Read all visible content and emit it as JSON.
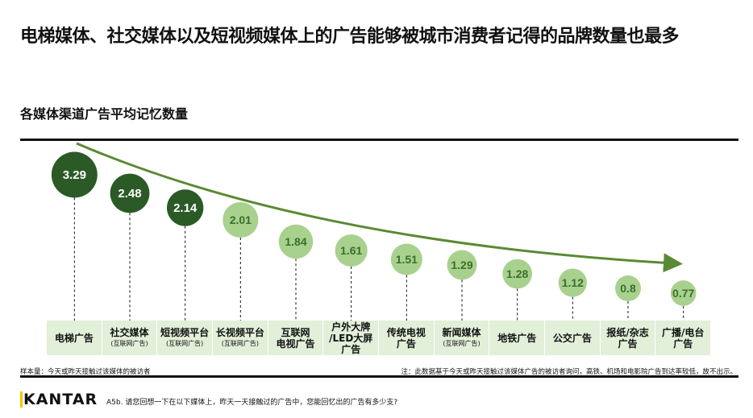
{
  "title": "电梯媒体、社交媒体以及短视频媒体上的广告能够被城市消费者记得的品牌数量也最多",
  "chart_data": {
    "type": "bar",
    "title": "各媒体渠道广告平均记忆数量",
    "categories": [
      {
        "label": "电梯广告",
        "sub": ""
      },
      {
        "label": "社交媒体",
        "sub": "(互联网广告)"
      },
      {
        "label": "短视频平台",
        "sub": "(互联网广告)"
      },
      {
        "label": "长视频平台",
        "sub": "(互联网广告)"
      },
      {
        "label": "互联网\n电视广告",
        "sub": ""
      },
      {
        "label": "户外大牌\n/LED大屏\n广告",
        "sub": ""
      },
      {
        "label": "传统电视\n广告",
        "sub": ""
      },
      {
        "label": "新闻媒体",
        "sub": "(互联网广告)"
      },
      {
        "label": "地铁广告",
        "sub": ""
      },
      {
        "label": "公交广告",
        "sub": ""
      },
      {
        "label": "报纸/杂志\n广告",
        "sub": ""
      },
      {
        "label": "广播/电台\n广告",
        "sub": ""
      }
    ],
    "values": [
      3.29,
      2.48,
      2.14,
      2.01,
      1.84,
      1.61,
      1.51,
      1.29,
      1.28,
      1.12,
      0.8,
      0.77
    ],
    "value_labels": [
      "3.29",
      "2.48",
      "2.14",
      "2.01",
      "1.84",
      "1.61",
      "1.51",
      "1.29",
      "1.28",
      "1.12",
      "0.8",
      "0.77"
    ],
    "highlight_count": 3,
    "colors": {
      "highlight": "#2b5a26",
      "normal": "#a9d18e",
      "normal_text": "#3b6e2c",
      "arrow": "#5a8a34",
      "band": "#e2efd9"
    }
  },
  "footnotes": {
    "sample": "样本量：今天或昨天接触过该媒体的被访者",
    "note": "注：此数据基于今天或昨天接触过该媒体广告的被访者询问，高铁、机场和电影院广告到达率较低，故不出示。"
  },
  "brand": "KANTAR",
  "question": "A5b. 请您回想一下在以下媒体上，昨天一天接触过的广告中，您能回忆出的广告有多少支?"
}
